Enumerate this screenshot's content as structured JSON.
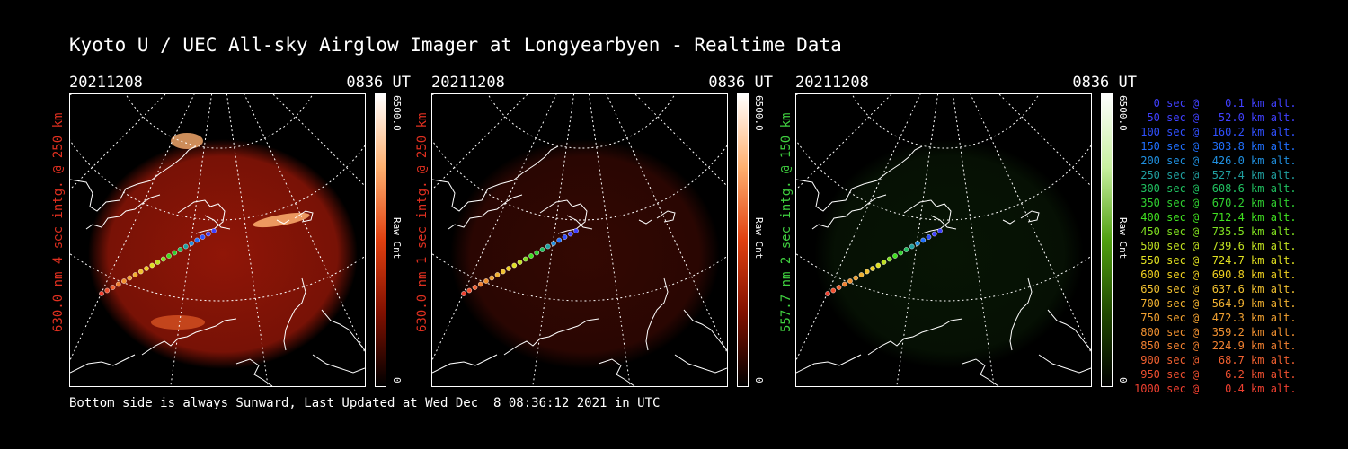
{
  "title": "Kyoto U / UEC All-sky Airglow Imager at Longyearbyen - Realtime Data",
  "footer": "Bottom side is always Sunward, Last Updated at Wed Dec  8 08:36:12 2021 in UTC",
  "panels": [
    {
      "date": "20211208",
      "time": "0836 UT",
      "ylabel": "630.0 nm 4 sec intg. @ 250 km",
      "label_color": "#e03020",
      "cbar_max": "6500.0",
      "cbar_min": "0",
      "cbar_unit": "Raw Cnt",
      "cbar_gradient": [
        "#ffffff",
        "#ffb070",
        "#e04010",
        "#801000",
        "#000000"
      ],
      "intensity": 1.0
    },
    {
      "date": "20211208",
      "time": "0836 UT",
      "ylabel": "630.0 nm 1 sec intg. @ 250 km",
      "label_color": "#e03020",
      "cbar_max": "6500.0",
      "cbar_min": "0",
      "cbar_unit": "Raw Cnt",
      "cbar_gradient": [
        "#ffffff",
        "#ffb070",
        "#e04010",
        "#801000",
        "#000000"
      ],
      "intensity": 0.35
    },
    {
      "date": "20211208",
      "time": "0836 UT",
      "ylabel": "557.7 nm 2 sec intg. @ 150 km",
      "label_color": "#40d040",
      "cbar_max": "6500.0",
      "cbar_min": "0",
      "cbar_unit": "Raw Cnt",
      "cbar_gradient": [
        "#ffffff",
        "#c8f0a0",
        "#50a010",
        "#204800",
        "#000000"
      ],
      "intensity": 0.3
    }
  ],
  "legend": [
    {
      "text": "   0 sec @    0.1 km alt.",
      "color": "#4040ff"
    },
    {
      "text": "  50 sec @   52.0 km alt.",
      "color": "#4040ff"
    },
    {
      "text": " 100 sec @  160.2 km alt.",
      "color": "#3050ff"
    },
    {
      "text": " 150 sec @  303.8 km alt.",
      "color": "#2070ff"
    },
    {
      "text": " 200 sec @  426.0 km alt.",
      "color": "#2090e0"
    },
    {
      "text": " 250 sec @  527.4 km alt.",
      "color": "#20a0a0"
    },
    {
      "text": " 300 sec @  608.6 km alt.",
      "color": "#20c060"
    },
    {
      "text": " 350 sec @  670.2 km alt.",
      "color": "#30d030"
    },
    {
      "text": " 400 sec @  712.4 km alt.",
      "color": "#40e020"
    },
    {
      "text": " 450 sec @  735.5 km alt.",
      "color": "#80e020"
    },
    {
      "text": " 500 sec @  739.6 km alt.",
      "color": "#c0e020"
    },
    {
      "text": " 550 sec @  724.7 km alt.",
      "color": "#e0e020"
    },
    {
      "text": " 600 sec @  690.8 km alt.",
      "color": "#f0d020"
    },
    {
      "text": " 650 sec @  637.6 km alt.",
      "color": "#f0c030"
    },
    {
      "text": " 700 sec @  564.9 km alt.",
      "color": "#f0b030"
    },
    {
      "text": " 750 sec @  472.3 km alt.",
      "color": "#f0a030"
    },
    {
      "text": " 800 sec @  359.2 km alt.",
      "color": "#f09030"
    },
    {
      "text": " 850 sec @  224.9 km alt.",
      "color": "#f08030"
    },
    {
      "text": " 900 sec @   68.7 km alt.",
      "color": "#f06030"
    },
    {
      "text": " 950 sec @    6.2 km alt.",
      "color": "#f05030"
    },
    {
      "text": "1000 sec @    0.4 km alt.",
      "color": "#f04030"
    }
  ]
}
